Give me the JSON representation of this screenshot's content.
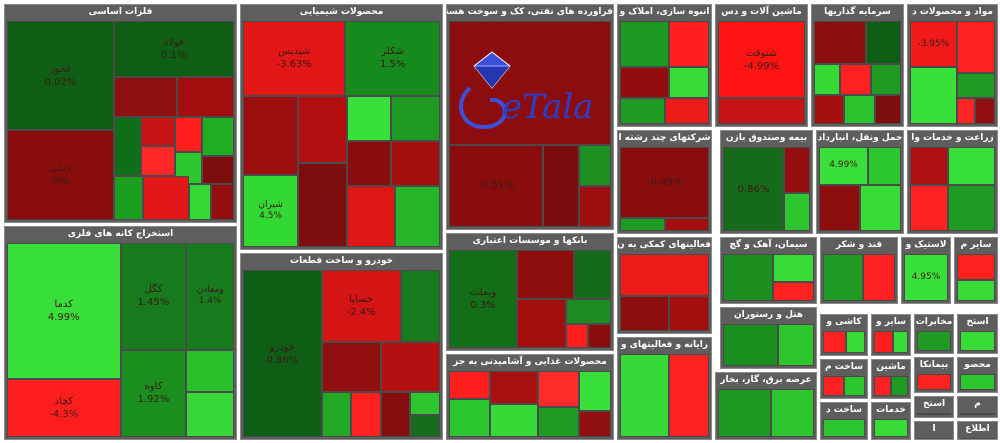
{
  "chart_data": {
    "type": "treemap",
    "sectors": [
      {
        "name": "فلزات اساسی",
        "tiles": [
          {
            "name": "فولاد",
            "pct": "0.1%",
            "color": "#0f5e16"
          },
          {
            "name": "فملی",
            "pct": "0%",
            "color": "#8a0d0d"
          },
          {
            "name": "فخوز",
            "pct": "0.02%",
            "color": "#0f5e16"
          },
          {
            "name": "",
            "pct": "",
            "color": "#8f1010"
          },
          {
            "name": "",
            "pct": "",
            "color": "#a30f0f"
          },
          {
            "name": "",
            "pct": "",
            "color": "#0f6e18"
          },
          {
            "name": "",
            "pct": "",
            "color": "#c71313"
          },
          {
            "name": "",
            "pct": "",
            "color": "#ff1d1d"
          },
          {
            "name": "",
            "pct": "",
            "color": "#1fae24"
          },
          {
            "name": "",
            "pct": "",
            "color": "#ff2828"
          },
          {
            "name": "",
            "pct": "",
            "color": "#2cc72e"
          },
          {
            "name": "",
            "pct": "",
            "color": "#7e0e0e"
          },
          {
            "name": "",
            "pct": "",
            "color": "#1c9e20"
          },
          {
            "name": "",
            "pct": "",
            "color": "#e31717"
          },
          {
            "name": "",
            "pct": "",
            "color": "#34d934"
          },
          {
            "name": "",
            "pct": "",
            "color": "#930f0f"
          }
        ]
      },
      {
        "name": "استخراج کانه های فلزی",
        "tiles": [
          {
            "name": "کدما",
            "pct": "4.99%",
            "color": "#3ae03a"
          },
          {
            "name": "کچاد",
            "pct": "-4.3%",
            "color": "#ff1e1e"
          },
          {
            "name": "کگل",
            "pct": "1.45%",
            "color": "#177a1c"
          },
          {
            "name": "ومعادن",
            "pct": "1.4%",
            "color": "#177a1c"
          },
          {
            "name": "کاوه",
            "pct": "1.92%",
            "color": "#1a8f1f"
          },
          {
            "name": "",
            "pct": "",
            "color": "#29c02c"
          },
          {
            "name": "",
            "pct": "",
            "color": "#39d839"
          }
        ]
      },
      {
        "name": "محصولات شیمیایی",
        "tiles": [
          {
            "name": "شپدیس",
            "pct": "-3.63%",
            "color": "#e51616"
          },
          {
            "name": "شکلر",
            "pct": "1.5%",
            "color": "#168a1c"
          },
          {
            "name": "شیران",
            "pct": "4.5%",
            "color": "#33d933"
          },
          {
            "name": "",
            "pct": "",
            "color": "#9c0e0e"
          },
          {
            "name": "",
            "pct": "",
            "color": "#b21010"
          },
          {
            "name": "",
            "pct": "",
            "color": "#39e039"
          },
          {
            "name": "",
            "pct": "",
            "color": "#1f9a22"
          },
          {
            "name": "",
            "pct": "",
            "color": "#8a0d0d"
          },
          {
            "name": "",
            "pct": "",
            "color": "#a40f0f"
          },
          {
            "name": "",
            "pct": "",
            "color": "#7e0d0d"
          },
          {
            "name": "",
            "pct": "",
            "color": "#e01616"
          },
          {
            "name": "",
            "pct": "",
            "color": "#27b52a"
          }
        ]
      },
      {
        "name": "خودرو و ساخت قطعات",
        "tiles": [
          {
            "name": "خودرو",
            "pct": "0.86%",
            "color": "#0f5e16"
          },
          {
            "name": "خساپا",
            "pct": "-2.4%",
            "color": "#d51414"
          },
          {
            "name": "",
            "pct": "",
            "color": "#1a7a1e"
          },
          {
            "name": "",
            "pct": "",
            "color": "#920f0f"
          },
          {
            "name": "",
            "pct": "",
            "color": "#b31111"
          },
          {
            "name": "",
            "pct": "",
            "color": "#23a826"
          },
          {
            "name": "",
            "pct": "",
            "color": "#ff2020"
          },
          {
            "name": "",
            "pct": "",
            "color": "#860d0d"
          },
          {
            "name": "",
            "pct": "",
            "color": "#2ec62f"
          },
          {
            "name": "",
            "pct": "",
            "color": "#176d1b"
          }
        ]
      },
      {
        "name": "فراورده های نفتی، کک و سوخت هسته",
        "tiles": [
          {
            "name": "",
            "pct": "",
            "color": "#8c0d0d"
          },
          {
            "name": "",
            "pct": "-0.51%",
            "color": "#8a0d0d"
          },
          {
            "name": "",
            "pct": "",
            "color": "#790c0c"
          },
          {
            "name": "",
            "pct": "",
            "color": "#1f9022"
          },
          {
            "name": "",
            "pct": "",
            "color": "#9e0f0f"
          }
        ]
      },
      {
        "name": "بانکها و موسسات اعتباری",
        "tiles": [
          {
            "name": "وبملت",
            "pct": "0.3%",
            "color": "#136e18"
          },
          {
            "name": "",
            "pct": "",
            "color": "#8e0e0e"
          },
          {
            "name": "",
            "pct": "",
            "color": "#166b1a"
          },
          {
            "name": "",
            "pct": "",
            "color": "#a10f0f"
          },
          {
            "name": "",
            "pct": "",
            "color": "#1e8a22"
          },
          {
            "name": "",
            "pct": "",
            "color": "#ff1f1f"
          },
          {
            "name": "",
            "pct": "",
            "color": "#8a0d0d"
          }
        ]
      },
      {
        "name": "محصولات غذایی و آشامیدنی به جز",
        "tiles": [
          {
            "name": "",
            "pct": "",
            "color": "#ff1f1f"
          },
          {
            "name": "",
            "pct": "",
            "color": "#2cc72e"
          },
          {
            "name": "",
            "pct": "",
            "color": "#a80f0f"
          },
          {
            "name": "",
            "pct": "",
            "color": "#36d936"
          },
          {
            "name": "",
            "pct": "",
            "color": "#ff2a2a"
          },
          {
            "name": "",
            "pct": "",
            "color": "#1e9c22"
          },
          {
            "name": "",
            "pct": "",
            "color": "#3ae03a"
          },
          {
            "name": "",
            "pct": "",
            "color": "#900f0f"
          }
        ]
      },
      {
        "name": "انبوه سازی، املاک و",
        "tiles": [
          {
            "name": "",
            "pct": "",
            "color": "#1c9a20"
          },
          {
            "name": "",
            "pct": "",
            "color": "#ff1f1f"
          },
          {
            "name": "",
            "pct": "",
            "color": "#920e0e"
          },
          {
            "name": "",
            "pct": "",
            "color": "#37dc37"
          },
          {
            "name": "",
            "pct": "",
            "color": "#1f9a22"
          },
          {
            "name": "",
            "pct": "",
            "color": "#ee1a1a"
          }
        ]
      },
      {
        "name": "ماشین آلات و دس",
        "tiles": [
          {
            "name": "شتوقت",
            "pct": "-4.99%",
            "color": "#ff1414"
          },
          {
            "name": "",
            "pct": "",
            "color": "#c61313"
          }
        ]
      },
      {
        "name": "سرمایه گذاریها",
        "tiles": [
          {
            "name": "",
            "pct": "",
            "color": "#8c0d0d"
          },
          {
            "name": "",
            "pct": "",
            "color": "#0f5e16"
          },
          {
            "name": "",
            "pct": "",
            "color": "#34d934"
          },
          {
            "name": "",
            "pct": "",
            "color": "#ff2121"
          },
          {
            "name": "",
            "pct": "",
            "color": "#1f9a22"
          },
          {
            "name": "",
            "pct": "",
            "color": "#a40f0f"
          },
          {
            "name": "",
            "pct": "",
            "color": "#2bc22d"
          },
          {
            "name": "",
            "pct": "",
            "color": "#7e0d0d"
          }
        ]
      },
      {
        "name": "مواد و محصولات د",
        "tiles": [
          {
            "name": "",
            "pct": "-3.95%",
            "color": "#f01a1a"
          },
          {
            "name": "",
            "pct": "",
            "color": "#39e039"
          },
          {
            "name": "",
            "pct": "",
            "color": "#ff2020"
          },
          {
            "name": "",
            "pct": "",
            "color": "#1f9a22"
          },
          {
            "name": "",
            "pct": "",
            "color": "#ff2525"
          },
          {
            "name": "",
            "pct": "",
            "color": "#920f0f"
          }
        ]
      },
      {
        "name": "شرکتهای چند رشته ا",
        "tiles": [
          {
            "name": "",
            "pct": "-0.49%",
            "color": "#8a0d0d"
          },
          {
            "name": "",
            "pct": "",
            "color": "#1f9a22"
          },
          {
            "name": "",
            "pct": "",
            "color": "#a30f0f"
          }
        ]
      },
      {
        "name": "بیمه وصندوق بازن",
        "tiles": [
          {
            "name": "",
            "pct": "0.86%",
            "color": "#166b1a"
          },
          {
            "name": "",
            "pct": "",
            "color": "#930f0f"
          },
          {
            "name": "",
            "pct": "",
            "color": "#2ec62f"
          }
        ]
      },
      {
        "name": "حمل ونقل، انبارداد",
        "tiles": [
          {
            "name": "",
            "pct": "4.99%",
            "color": "#3ae03a"
          },
          {
            "name": "",
            "pct": "",
            "color": "#2cc72e"
          },
          {
            "name": "",
            "pct": "",
            "color": "#8e0e0e"
          },
          {
            "name": "",
            "pct": "",
            "color": "#37dc37"
          }
        ]
      },
      {
        "name": "زراعت و خدمات وا",
        "tiles": [
          {
            "name": "",
            "pct": "",
            "color": "#b01010"
          },
          {
            "name": "",
            "pct": "",
            "color": "#3ae03a"
          },
          {
            "name": "",
            "pct": "",
            "color": "#ff2222"
          },
          {
            "name": "",
            "pct": "",
            "color": "#1f9a22"
          }
        ]
      },
      {
        "name": "فعالیتهای کمکی به ن",
        "tiles": [
          {
            "name": "",
            "pct": "",
            "color": "#ef1a1a"
          },
          {
            "name": "",
            "pct": "",
            "color": "#8e0e0e"
          },
          {
            "name": "",
            "pct": "",
            "color": "#a30f0f"
          }
        ]
      },
      {
        "name": "سیمان، آهک و گچ",
        "tiles": [
          {
            "name": "",
            "pct": "",
            "color": "#1c8f20"
          },
          {
            "name": "",
            "pct": "",
            "color": "#37dc37"
          },
          {
            "name": "",
            "pct": "",
            "color": "#ff2020"
          }
        ]
      },
      {
        "name": "قند و شکر",
        "tiles": [
          {
            "name": "",
            "pct": "",
            "color": "#1f9a22"
          },
          {
            "name": "",
            "pct": "",
            "color": "#ff2121"
          }
        ]
      },
      {
        "name": "لاستیک و",
        "tiles": [
          {
            "name": "",
            "pct": "4.95%",
            "color": "#3ae03a"
          }
        ]
      },
      {
        "name": "سایر م",
        "tiles": [
          {
            "name": "",
            "pct": "",
            "color": "#ff2020"
          },
          {
            "name": "",
            "pct": "",
            "color": "#37dc37"
          }
        ]
      },
      {
        "name": "هتل و رستوران",
        "tiles": [
          {
            "name": "",
            "pct": "",
            "color": "#1a8f1f"
          },
          {
            "name": "",
            "pct": "",
            "color": "#2ec62f"
          }
        ]
      },
      {
        "name": "رایانه و فعالیتهای و",
        "tiles": [
          {
            "name": "",
            "pct": "",
            "color": "#39d839"
          },
          {
            "name": "",
            "pct": "",
            "color": "#ff2121"
          }
        ]
      },
      {
        "name": "عرضه برق، گاز، بخار",
        "tiles": [
          {
            "name": "",
            "pct": "",
            "color": "#1e9a22"
          },
          {
            "name": "",
            "pct": "",
            "color": "#2ec62f"
          }
        ]
      },
      {
        "name": "کاشی و",
        "tiles": [
          {
            "name": "",
            "pct": "",
            "color": "#ff2121"
          },
          {
            "name": "",
            "pct": "",
            "color": "#37dc37"
          }
        ]
      },
      {
        "name": "ساخت م",
        "tiles": [
          {
            "name": "",
            "pct": "",
            "color": "#ff2222"
          },
          {
            "name": "",
            "pct": "",
            "color": "#2cc72e"
          }
        ]
      },
      {
        "name": "ساخت د",
        "tiles": [
          {
            "name": "",
            "pct": "",
            "color": "#2cc72e"
          }
        ]
      },
      {
        "name": "سایر و",
        "tiles": [
          {
            "name": "",
            "pct": "",
            "color": "#ff1f1f"
          },
          {
            "name": "",
            "pct": "",
            "color": "#37dc37"
          }
        ]
      },
      {
        "name": "ماشین",
        "tiles": [
          {
            "name": "",
            "pct": "",
            "color": "#ff2121"
          },
          {
            "name": "",
            "pct": "",
            "color": "#1f9a22"
          }
        ]
      },
      {
        "name": "خدمات",
        "tiles": [
          {
            "name": "",
            "pct": "",
            "color": "#37dc37"
          }
        ]
      },
      {
        "name": "مخابرات",
        "tiles": [
          {
            "name": "",
            "pct": "",
            "color": "#1f9a22"
          }
        ]
      },
      {
        "name": "استخ",
        "tiles": [
          {
            "name": "",
            "pct": "",
            "color": "#37dc37"
          }
        ]
      },
      {
        "name": "بیمانکا",
        "tiles": [
          {
            "name": "",
            "pct": "",
            "color": "#ff2020"
          }
        ]
      },
      {
        "name": "محصو",
        "tiles": [
          {
            "name": "",
            "pct": "",
            "color": "#2cc72e"
          }
        ]
      },
      {
        "name": "استخ",
        "tiles": [
          {
            "name": "",
            "pct": "",
            "color": "#ff2222"
          }
        ]
      },
      {
        "name": "م",
        "tiles": [
          {
            "name": "",
            "pct": "",
            "color": "#37dc37"
          }
        ]
      },
      {
        "name": "ا",
        "tiles": [
          {
            "name": "",
            "pct": "",
            "color": "#ff2020"
          }
        ]
      },
      {
        "name": "اطلاع",
        "tiles": [
          {
            "name": "",
            "pct": "",
            "color": "#1f9a22"
          }
        ]
      },
      {
        "name": "دبا",
        "tiles": [
          {
            "name": "",
            "pct": "",
            "color": "#ff2222"
          }
        ]
      }
    ]
  },
  "logo": {
    "text": "eTala",
    "gem_color": "#3d4fd8",
    "text_color": "#2a3fc9"
  }
}
